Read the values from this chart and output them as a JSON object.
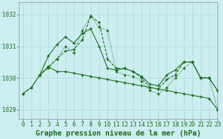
{
  "title": "Graphe pression niveau de la mer (hPa)",
  "background_color": "#cceef0",
  "grid_color": "#aadddd",
  "line_color": "#1a6b1a",
  "xlim": [
    -0.5,
    23
  ],
  "ylim": [
    1028.7,
    1032.4
  ],
  "yticks": [
    1029,
    1030,
    1031,
    1032
  ],
  "xticks": [
    0,
    1,
    2,
    3,
    4,
    5,
    6,
    7,
    8,
    9,
    10,
    11,
    12,
    13,
    14,
    15,
    16,
    17,
    18,
    19,
    20,
    21,
    22,
    23
  ],
  "line1_x": [
    0,
    1,
    2,
    3,
    4,
    5,
    6,
    7,
    8,
    9,
    10,
    11,
    12,
    13,
    14,
    15,
    16,
    17,
    18,
    19,
    20,
    21,
    22,
    23
  ],
  "line1_y": [
    1029.5,
    1029.7,
    1030.1,
    1030.3,
    1030.6,
    1031.0,
    1030.8,
    1031.5,
    1031.95,
    1031.6,
    1031.5,
    1030.2,
    1030.1,
    1030.05,
    1029.9,
    1029.6,
    1029.5,
    1029.7,
    1030.0,
    1030.3,
    1030.5,
    1030.0,
    1030.0,
    1029.0
  ],
  "line2_x": [
    0,
    1,
    2,
    3,
    4,
    5,
    6,
    7,
    8,
    9,
    10,
    11,
    12,
    13,
    14,
    15,
    16,
    17,
    18,
    19,
    20,
    21,
    22,
    23
  ],
  "line2_y": [
    1029.5,
    1029.7,
    1030.1,
    1030.35,
    1030.2,
    1030.2,
    1030.15,
    1030.1,
    1030.05,
    1030.0,
    1029.95,
    1029.9,
    1029.85,
    1029.8,
    1029.75,
    1029.7,
    1029.65,
    1029.6,
    1029.55,
    1029.5,
    1029.45,
    1029.4,
    1029.35,
    1029.0
  ],
  "line3_x": [
    2,
    3,
    4,
    5,
    6,
    7,
    8,
    9,
    10,
    11,
    12,
    13,
    14,
    15,
    16,
    17,
    18,
    19,
    20,
    21,
    22,
    23
  ],
  "line3_y": [
    1030.1,
    1030.7,
    1031.05,
    1031.3,
    1031.1,
    1031.4,
    1031.55,
    1031.0,
    1030.3,
    1030.25,
    1030.3,
    1030.2,
    1030.05,
    1029.8,
    1029.75,
    1030.1,
    1030.25,
    1030.5,
    1030.5,
    1030.0,
    1030.0,
    1029.6
  ],
  "line4_x": [
    2,
    3,
    4,
    5,
    6,
    7,
    8,
    9,
    10,
    11,
    12,
    13,
    14,
    15,
    16,
    17,
    18,
    19,
    20,
    21,
    22,
    23
  ],
  "line4_y": [
    1030.1,
    1030.35,
    1030.6,
    1030.85,
    1030.9,
    1031.2,
    1031.95,
    1031.75,
    1030.6,
    1030.3,
    1030.3,
    1030.2,
    1030.0,
    1029.7,
    1029.65,
    1029.95,
    1030.1,
    1030.5,
    1030.5,
    1030.0,
    1030.0,
    1029.6
  ],
  "tick_fontsize": 6,
  "label_fontsize": 7.5
}
